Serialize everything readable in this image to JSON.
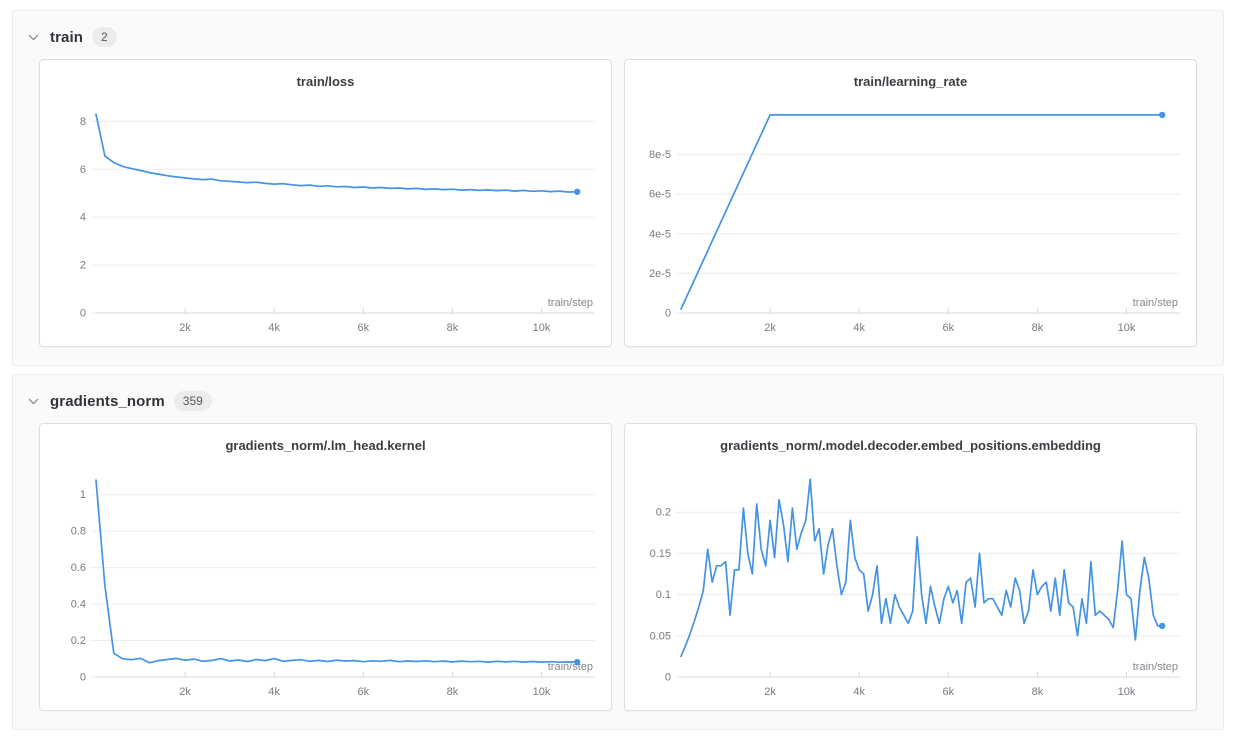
{
  "accent_color": "#4493e4",
  "colors": {
    "section_bg": "#fafafa",
    "section_border": "#ececee",
    "card_bg": "#ffffff",
    "card_border": "#dedee2",
    "grid": "#ededf0",
    "axis": "#d8d8dd",
    "tick_text": "#797b82",
    "title_text": "#3c3d42",
    "badge_bg": "#ececed"
  },
  "icons": {
    "section_toggle": "chevron-down"
  },
  "sections": [
    {
      "name": "train",
      "count": "2",
      "chart_refs": [
        0,
        1
      ]
    },
    {
      "name": "gradients_norm",
      "count": "359",
      "chart_refs": [
        2,
        3
      ]
    }
  ],
  "chart_data": [
    {
      "type": "line",
      "title": "train/loss",
      "xlabel": "train/step",
      "xlim": [
        0,
        11200
      ],
      "ylim": [
        0,
        8.6
      ],
      "xticks": [
        2000,
        4000,
        6000,
        8000,
        10000
      ],
      "xtick_labels": [
        "2k",
        "4k",
        "6k",
        "8k",
        "10k"
      ],
      "yticks": [
        0,
        2,
        4,
        6,
        8
      ],
      "ytick_labels": [
        "0",
        "2",
        "4",
        "6",
        "8"
      ],
      "x_start": 0,
      "x_step": 200,
      "y": [
        8.3,
        6.55,
        6.28,
        6.12,
        6.03,
        5.95,
        5.86,
        5.8,
        5.73,
        5.68,
        5.64,
        5.6,
        5.57,
        5.59,
        5.52,
        5.5,
        5.47,
        5.44,
        5.46,
        5.41,
        5.38,
        5.4,
        5.35,
        5.32,
        5.34,
        5.29,
        5.31,
        5.27,
        5.28,
        5.24,
        5.26,
        5.22,
        5.24,
        5.2,
        5.22,
        5.18,
        5.2,
        5.16,
        5.18,
        5.15,
        5.17,
        5.13,
        5.15,
        5.12,
        5.14,
        5.11,
        5.13,
        5.09,
        5.12,
        5.08,
        5.1,
        5.07,
        5.09,
        5.05,
        5.06
      ]
    },
    {
      "type": "line",
      "title": "train/learning_rate",
      "xlabel": "train/step",
      "xlim": [
        0,
        11200
      ],
      "ylim": [
        0,
        0.000104
      ],
      "xticks": [
        2000,
        4000,
        6000,
        8000,
        10000
      ],
      "xtick_labels": [
        "2k",
        "4k",
        "6k",
        "8k",
        "10k"
      ],
      "yticks": [
        0,
        2e-05,
        4e-05,
        6e-05,
        8e-05
      ],
      "ytick_labels": [
        "0",
        "2e-5",
        "4e-5",
        "6e-5",
        "8e-5"
      ],
      "x": [
        0,
        2000,
        10800
      ],
      "y": [
        2e-06,
        0.0001,
        0.0001
      ]
    },
    {
      "type": "line",
      "title": "gradients_norm/.lm_head.kernel",
      "xlabel": "train/step",
      "xlim": [
        0,
        11200
      ],
      "ylim": [
        0,
        1.13
      ],
      "xticks": [
        2000,
        4000,
        6000,
        8000,
        10000
      ],
      "xtick_labels": [
        "2k",
        "4k",
        "6k",
        "8k",
        "10k"
      ],
      "yticks": [
        0,
        0.2,
        0.4,
        0.6,
        0.8,
        1
      ],
      "ytick_labels": [
        "0",
        "0.2",
        "0.4",
        "0.6",
        "0.8",
        "1"
      ],
      "x_start": 0,
      "x_step": 200,
      "y": [
        1.08,
        0.5,
        0.13,
        0.1,
        0.095,
        0.102,
        0.078,
        0.09,
        0.096,
        0.102,
        0.092,
        0.098,
        0.086,
        0.091,
        0.101,
        0.088,
        0.093,
        0.085,
        0.096,
        0.09,
        0.101,
        0.086,
        0.091,
        0.095,
        0.086,
        0.091,
        0.085,
        0.092,
        0.088,
        0.09,
        0.084,
        0.089,
        0.086,
        0.091,
        0.084,
        0.088,
        0.085,
        0.089,
        0.084,
        0.087,
        0.083,
        0.087,
        0.084,
        0.086,
        0.082,
        0.086,
        0.083,
        0.086,
        0.082,
        0.085,
        0.082,
        0.084,
        0.081,
        0.083,
        0.082
      ]
    },
    {
      "type": "line",
      "title": "gradients_norm/.model.decoder.embed_positions.embedding",
      "xlabel": "train/step",
      "xlim": [
        0,
        11200
      ],
      "ylim": [
        0,
        0.25
      ],
      "xticks": [
        2000,
        4000,
        6000,
        8000,
        10000
      ],
      "xtick_labels": [
        "2k",
        "4k",
        "6k",
        "8k",
        "10k"
      ],
      "yticks": [
        0,
        0.05,
        0.1,
        0.15,
        0.2
      ],
      "ytick_labels": [
        "0",
        "0.05",
        "0.1",
        "0.15",
        "0.2"
      ],
      "x_start": 0,
      "x_step": 100,
      "y": [
        0.025,
        0.038,
        0.052,
        0.068,
        0.085,
        0.105,
        0.155,
        0.115,
        0.135,
        0.135,
        0.14,
        0.075,
        0.13,
        0.13,
        0.205,
        0.15,
        0.125,
        0.21,
        0.155,
        0.135,
        0.19,
        0.145,
        0.215,
        0.185,
        0.14,
        0.205,
        0.155,
        0.175,
        0.19,
        0.24,
        0.165,
        0.18,
        0.125,
        0.16,
        0.18,
        0.135,
        0.1,
        0.115,
        0.19,
        0.145,
        0.13,
        0.125,
        0.08,
        0.1,
        0.135,
        0.065,
        0.095,
        0.065,
        0.1,
        0.085,
        0.075,
        0.065,
        0.08,
        0.17,
        0.1,
        0.065,
        0.11,
        0.085,
        0.065,
        0.095,
        0.11,
        0.09,
        0.105,
        0.065,
        0.115,
        0.12,
        0.085,
        0.15,
        0.09,
        0.095,
        0.095,
        0.085,
        0.075,
        0.105,
        0.085,
        0.12,
        0.105,
        0.065,
        0.08,
        0.13,
        0.1,
        0.11,
        0.115,
        0.08,
        0.12,
        0.075,
        0.13,
        0.09,
        0.085,
        0.05,
        0.095,
        0.065,
        0.14,
        0.075,
        0.08,
        0.075,
        0.07,
        0.06,
        0.105,
        0.165,
        0.1,
        0.095,
        0.045,
        0.105,
        0.145,
        0.12,
        0.075,
        0.062,
        0.062
      ]
    }
  ]
}
